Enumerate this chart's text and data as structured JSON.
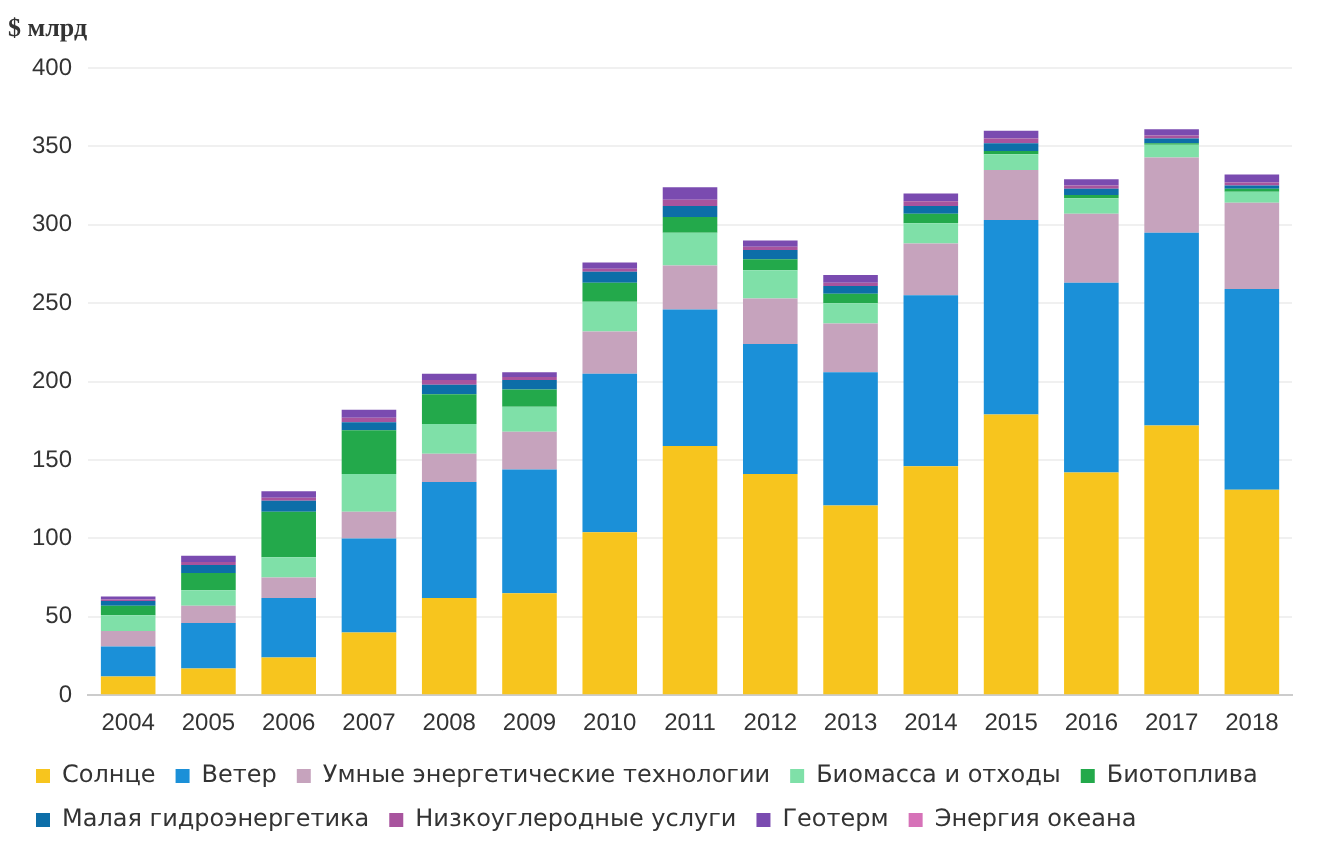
{
  "chart_data": {
    "type": "bar",
    "stacked": true,
    "ylabel": "$ млрд",
    "categories": [
      "2004",
      "2005",
      "2006",
      "2007",
      "2008",
      "2009",
      "2010",
      "2011",
      "2012",
      "2013",
      "2014",
      "2015",
      "2016",
      "2017",
      "2018"
    ],
    "ylim": [
      0,
      400
    ],
    "yticks": [
      0,
      50,
      100,
      150,
      200,
      250,
      300,
      350,
      400
    ],
    "grid": "y",
    "legend": "bottom",
    "series": [
      {
        "name": "Солнце",
        "color": "#f7c51e",
        "values": [
          12,
          17,
          24,
          40,
          62,
          65,
          104,
          159,
          141,
          121,
          146,
          179,
          142,
          172,
          131
        ]
      },
      {
        "name": "Ветер",
        "color": "#1b90d8",
        "values": [
          19,
          29,
          38,
          60,
          74,
          79,
          101,
          87,
          83,
          85,
          109,
          124,
          121,
          123,
          128
        ]
      },
      {
        "name": "Умные энергетические технологии",
        "color": "#c6a3bd",
        "values": [
          10,
          11,
          13,
          17,
          18,
          24,
          27,
          28,
          29,
          31,
          33,
          32,
          44,
          48,
          55
        ]
      },
      {
        "name": "Биомасса и отходы",
        "color": "#7fe0a8",
        "values": [
          10,
          10,
          13,
          24,
          19,
          16,
          19,
          21,
          18,
          13,
          13,
          10,
          10,
          8,
          7
        ]
      },
      {
        "name": "Биотоплива",
        "color": "#23a94b",
        "values": [
          6,
          11,
          29,
          28,
          19,
          11,
          12,
          10,
          7,
          6,
          6,
          2,
          2,
          1,
          2
        ]
      },
      {
        "name": "Малая гидроэнергетика",
        "color": "#0d6ea8",
        "values": [
          3,
          5,
          7,
          5,
          6,
          6,
          7,
          7,
          6,
          5,
          5,
          5,
          4,
          3,
          2
        ]
      },
      {
        "name": "Низкоуглеродные услуги",
        "color": "#a8549e",
        "values": [
          1,
          2,
          2,
          3,
          3,
          2,
          2,
          4,
          2,
          2,
          3,
          3,
          2,
          2,
          2
        ]
      },
      {
        "name": "Геотерм",
        "color": "#7a4bb0",
        "values": [
          2,
          4,
          4,
          5,
          4,
          3,
          4,
          8,
          4,
          5,
          5,
          5,
          4,
          4,
          5
        ]
      },
      {
        "name": "Энергия океана",
        "color": "#d672b8",
        "values": [
          null,
          null,
          null,
          null,
          null,
          null,
          null,
          null,
          null,
          null,
          null,
          null,
          null,
          null,
          null
        ]
      }
    ]
  }
}
